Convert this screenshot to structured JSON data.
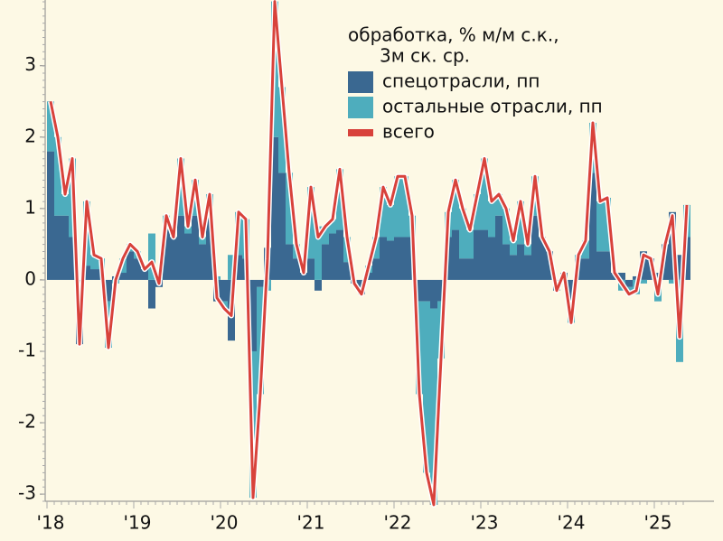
{
  "chart_data": {
    "type": "bar-line",
    "legend_title": [
      "обработка, % м/м с.к.,",
      "3м ск. ср."
    ],
    "categories": [
      "'18",
      null,
      null,
      null,
      null,
      null,
      null,
      null,
      null,
      null,
      null,
      null,
      "'19",
      null,
      null,
      null,
      null,
      null,
      null,
      null,
      null,
      null,
      null,
      null,
      "'20",
      null,
      null,
      null,
      null,
      null,
      null,
      null,
      null,
      null,
      null,
      null,
      "'21",
      null,
      null,
      null,
      null,
      null,
      null,
      null,
      null,
      null,
      null,
      null,
      "'22",
      null,
      null,
      null,
      null,
      null,
      null,
      null,
      null,
      null,
      null,
      null,
      "'23",
      null,
      null,
      null,
      null,
      null,
      null,
      null,
      null,
      null,
      null,
      null,
      "'24",
      null,
      null,
      null,
      null,
      null,
      null,
      null,
      null,
      null,
      null,
      null,
      "'25",
      null,
      null,
      null,
      null
    ],
    "series": [
      {
        "name": "спецотрасли, пп",
        "kind": "bar",
        "color": "#3a6891",
        "values": [
          1.8,
          0.9,
          0.9,
          0.6,
          -0.9,
          0.2,
          0.15,
          0.15,
          -0.3,
          0.05,
          0.1,
          0.4,
          0.3,
          0.15,
          -0.4,
          -0.1,
          0.7,
          0.6,
          0.9,
          0.65,
          0.9,
          0.5,
          0.9,
          -0.3,
          -0.3,
          -0.85,
          0.35,
          0.3,
          -1.0,
          -0.1,
          0.45,
          2.0,
          1.5,
          0.5,
          0.3,
          0.1,
          0.3,
          -0.15,
          0.5,
          0.65,
          0.7,
          0.25,
          -0.05,
          -0.2,
          0.1,
          0.3,
          0.6,
          0.55,
          0.6,
          0.6,
          0.6,
          -0.3,
          -0.3,
          -0.4,
          -0.3,
          0.6,
          0.7,
          0.3,
          0.3,
          0.7,
          0.7,
          0.6,
          0.9,
          0.5,
          0.35,
          0.5,
          0.35,
          0.9,
          0.6,
          0.4,
          -0.15,
          0.1,
          -0.4,
          0.3,
          0.3,
          1.5,
          0.4,
          0.4,
          0.1,
          0.1,
          -0.1,
          0.05,
          0.4,
          0.3,
          0.1,
          0.5,
          0.95,
          0.35,
          0.6
        ]
      },
      {
        "name": "остальные отрасли, пп",
        "kind": "bar",
        "color": "#4eadbd",
        "values": [
          0.7,
          1.1,
          0.3,
          1.1,
          0.0,
          0.9,
          0.2,
          0.15,
          -0.65,
          -0.05,
          0.2,
          0.1,
          0.1,
          0.0,
          0.65,
          0.05,
          0.2,
          0.0,
          0.8,
          0.1,
          0.5,
          0.1,
          0.3,
          0.05,
          -0.1,
          0.35,
          0.6,
          0.55,
          -2.05,
          -1.5,
          -0.15,
          1.9,
          1.2,
          1.0,
          0.2,
          0.0,
          1.0,
          0.75,
          0.25,
          0.2,
          0.85,
          0.35,
          0.0,
          0.0,
          0.1,
          0.3,
          0.7,
          0.5,
          0.85,
          0.85,
          0.3,
          -1.3,
          -2.4,
          -2.75,
          -0.8,
          0.35,
          0.7,
          0.7,
          0.4,
          0.5,
          1.0,
          0.5,
          0.3,
          0.5,
          0.2,
          0.6,
          0.15,
          0.55,
          0.0,
          0.0,
          0.0,
          0.0,
          -0.2,
          0.05,
          0.25,
          0.7,
          0.7,
          0.75,
          0.0,
          -0.15,
          -0.1,
          -0.2,
          -0.05,
          0.0,
          -0.3,
          0.0,
          -0.05,
          -1.15,
          0.45
        ]
      },
      {
        "name": "всего",
        "kind": "line",
        "color": "#d8423b",
        "values": [
          2.5,
          2.0,
          1.2,
          1.7,
          -0.9,
          1.1,
          0.35,
          0.3,
          -0.95,
          0.0,
          0.3,
          0.5,
          0.4,
          0.15,
          0.25,
          -0.05,
          0.9,
          0.6,
          1.7,
          0.75,
          1.4,
          0.6,
          1.2,
          -0.25,
          -0.4,
          -0.5,
          0.95,
          0.85,
          -3.05,
          -1.6,
          0.3,
          3.9,
          2.7,
          1.5,
          0.5,
          0.1,
          1.3,
          0.6,
          0.75,
          0.85,
          1.55,
          0.6,
          -0.05,
          -0.2,
          0.2,
          0.6,
          1.3,
          1.05,
          1.45,
          1.45,
          0.9,
          -1.6,
          -2.7,
          -3.15,
          -1.1,
          0.95,
          1.4,
          1.0,
          0.7,
          1.2,
          1.7,
          1.1,
          1.2,
          1.0,
          0.55,
          1.1,
          0.5,
          1.45,
          0.6,
          0.4,
          -0.15,
          0.1,
          -0.6,
          0.35,
          0.55,
          2.2,
          1.1,
          1.15,
          0.1,
          -0.05,
          -0.2,
          -0.15,
          0.35,
          0.3,
          -0.2,
          0.5,
          0.9,
          -0.8,
          1.05
        ]
      }
    ],
    "ylim": [
      -3.1,
      3.92
    ],
    "yticks": [
      -3,
      -2,
      -1,
      0,
      1,
      2,
      3
    ]
  }
}
